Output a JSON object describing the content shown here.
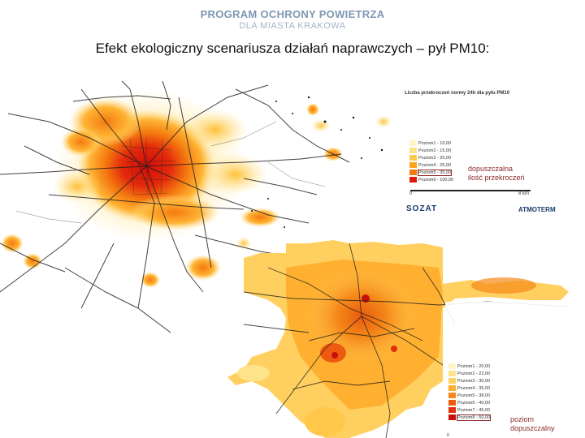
{
  "header": {
    "program_title": "PROGRAM OCHRONY POWIETRZA",
    "program_subtitle": "DLA MIASTA KRAKOWA"
  },
  "slide_title": "Efekt ekologiczny scenariusza działań naprawczych – pył PM10:",
  "map_top": {
    "legend_title": "Liczba przekroczeń normy 24h dla pyłu PM10",
    "classes": [
      {
        "label": "Poziom1 - 10,00",
        "color": "#fff6c8"
      },
      {
        "label": "Poziom2 - 15,00",
        "color": "#ffe38a"
      },
      {
        "label": "Poziom3 - 20,00",
        "color": "#ffc84a"
      },
      {
        "label": "Poziom4 - 25,00",
        "color": "#ffa31e"
      },
      {
        "label": "Poziom5 - 35,00",
        "color": "#f47a10"
      },
      {
        "label": "Poziom6 - 100,00",
        "color": "#dd1a0a"
      }
    ],
    "annotation": [
      "dopuszczalna",
      "ilość przekroczeń"
    ],
    "scale_start": "0",
    "scale_end": "8 km",
    "logo_left": "SOZAT",
    "logo_right": "ATMOTERM"
  },
  "map_bottom": {
    "classes": [
      {
        "label": "Poziom1 - 20,00",
        "color": "#fff6c8"
      },
      {
        "label": "Poziom2 - 22,00",
        "color": "#ffe38a"
      },
      {
        "label": "Poziom3 - 30,00",
        "color": "#ffd060"
      },
      {
        "label": "Poziom4 - 35,00",
        "color": "#ffb030"
      },
      {
        "label": "Poziom5 - 38,00",
        "color": "#f58a18"
      },
      {
        "label": "Poziom6 - 40,00",
        "color": "#ee5a10"
      },
      {
        "label": "Poziom7 - 45,00",
        "color": "#e0300c"
      },
      {
        "label": "Poziom8 - 50,00",
        "color": "#c8100a"
      }
    ],
    "annotation": [
      "poziom",
      "dopuszczalny"
    ],
    "scale_start": "0"
  }
}
